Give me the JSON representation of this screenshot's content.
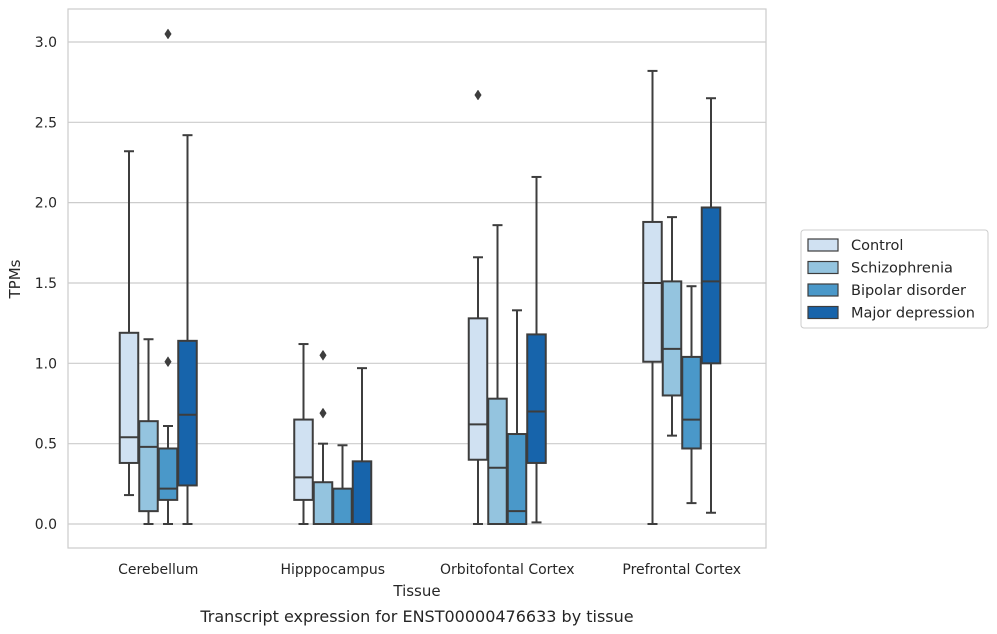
{
  "chart_data": {
    "type": "box",
    "caption": "Transcript expression for ENST00000476633 by tissue",
    "xlabel": "Tissue",
    "ylabel": "TPMs",
    "ylim": [
      -0.15,
      3.2
    ],
    "yticks": [
      "0.0",
      "0.5",
      "1.0",
      "1.5",
      "2.0",
      "2.5",
      "3.0"
    ],
    "grid": true,
    "legend_position": "right",
    "categories": [
      "Cerebellum",
      "Hipppocampus",
      "Orbitofontal Cortex",
      "Prefrontal Cortex"
    ],
    "series": [
      {
        "name": "Control",
        "color": "#d0e1f2",
        "boxes": [
          {
            "whislo": 0.18,
            "q1": 0.38,
            "med": 0.54,
            "q3": 1.19,
            "whishi": 2.32,
            "fliers": []
          },
          {
            "whislo": 0.0,
            "q1": 0.15,
            "med": 0.29,
            "q3": 0.65,
            "whishi": 1.12,
            "fliers": []
          },
          {
            "whislo": 0.0,
            "q1": 0.4,
            "med": 0.62,
            "q3": 1.28,
            "whishi": 1.66,
            "fliers": [
              2.67
            ]
          },
          {
            "whislo": 0.0,
            "q1": 1.01,
            "med": 1.5,
            "q3": 1.88,
            "whishi": 2.82,
            "fliers": []
          }
        ]
      },
      {
        "name": "Schizophrenia",
        "color": "#94c4df",
        "boxes": [
          {
            "whislo": 0.0,
            "q1": 0.08,
            "med": 0.48,
            "q3": 0.64,
            "whishi": 1.15,
            "fliers": []
          },
          {
            "whislo": 0.0,
            "q1": 0.0,
            "med": 0.0,
            "q3": 0.26,
            "whishi": 0.5,
            "fliers": [
              0.69,
              1.05
            ]
          },
          {
            "whislo": 0.0,
            "q1": 0.0,
            "med": 0.35,
            "q3": 0.78,
            "whishi": 1.86,
            "fliers": []
          },
          {
            "whislo": 0.55,
            "q1": 0.8,
            "med": 1.09,
            "q3": 1.51,
            "whishi": 1.91,
            "fliers": []
          }
        ]
      },
      {
        "name": "Bipolar disorder",
        "color": "#4a98c9",
        "boxes": [
          {
            "whislo": 0.0,
            "q1": 0.15,
            "med": 0.22,
            "q3": 0.47,
            "whishi": 0.61,
            "fliers": [
              1.01,
              3.05
            ]
          },
          {
            "whislo": 0.0,
            "q1": 0.0,
            "med": 0.0,
            "q3": 0.22,
            "whishi": 0.49,
            "fliers": []
          },
          {
            "whislo": 0.0,
            "q1": 0.0,
            "med": 0.08,
            "q3": 0.56,
            "whishi": 1.33,
            "fliers": []
          },
          {
            "whislo": 0.13,
            "q1": 0.47,
            "med": 0.65,
            "q3": 1.04,
            "whishi": 1.48,
            "fliers": []
          }
        ]
      },
      {
        "name": "Major depression",
        "color": "#1764ab",
        "boxes": [
          {
            "whislo": 0.0,
            "q1": 0.24,
            "med": 0.68,
            "q3": 1.14,
            "whishi": 2.42,
            "fliers": []
          },
          {
            "whislo": 0.0,
            "q1": 0.0,
            "med": 0.0,
            "q3": 0.39,
            "whishi": 0.97,
            "fliers": []
          },
          {
            "whislo": 0.01,
            "q1": 0.38,
            "med": 0.7,
            "q3": 1.18,
            "whishi": 2.16,
            "fliers": []
          },
          {
            "whislo": 0.07,
            "q1": 1.0,
            "med": 1.51,
            "q3": 1.97,
            "whishi": 2.65,
            "fliers": []
          }
        ]
      }
    ]
  }
}
